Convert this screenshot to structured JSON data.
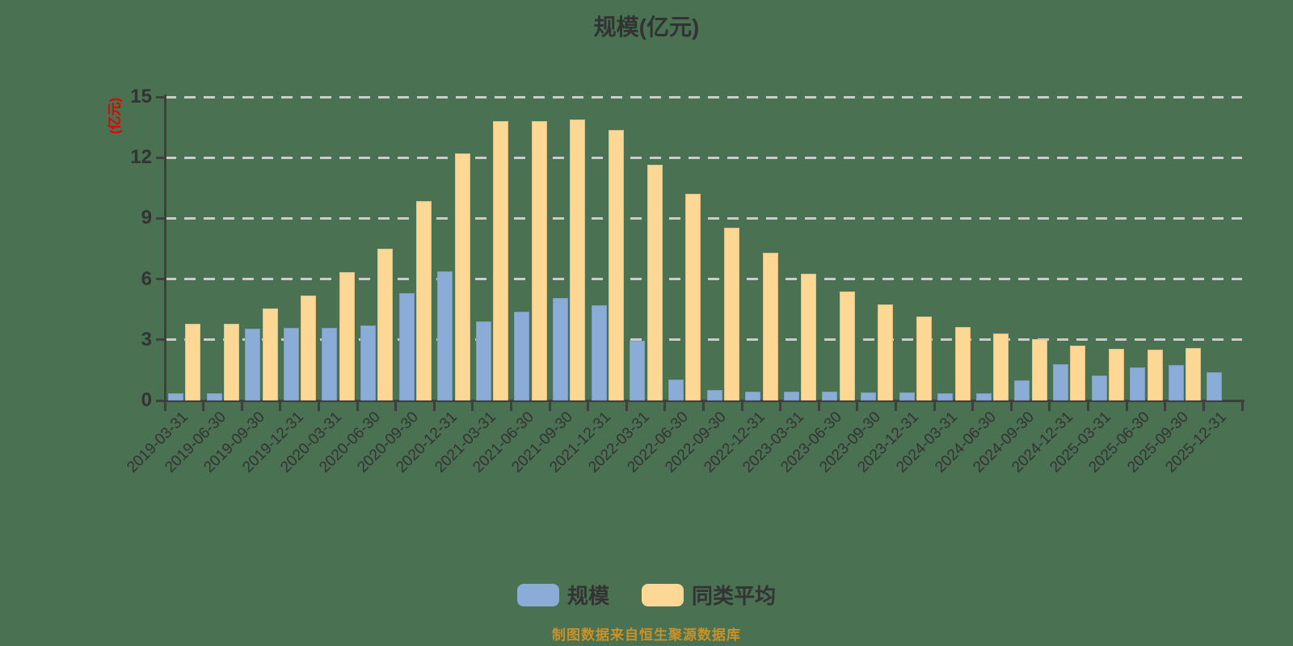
{
  "title": "规模(亿元)",
  "y_axis_name": "(亿元)",
  "footer_note": "制图数据来自恒生聚源数据库",
  "colors": {
    "background": "#4B7153",
    "text": "#333333",
    "axis": "#3F3F3F",
    "grid": "#CCCCCC",
    "y_axis_name_color": "#E60000",
    "footer": "#C8922A",
    "series_scale": "#8CACD8",
    "series_average": "#FCD894"
  },
  "chart_data": {
    "type": "bar",
    "title": "规模(亿元)",
    "ylabel": "(亿元)",
    "ylim": [
      0,
      15
    ],
    "yticks": [
      0,
      3,
      6,
      9,
      12,
      15
    ],
    "grid": true,
    "legend_position": "bottom",
    "categories": [
      "2019-03-31",
      "2019-06-30",
      "2019-09-30",
      "2019-12-31",
      "2020-03-31",
      "2020-06-30",
      "2020-09-30",
      "2020-12-31",
      "2021-03-31",
      "2021-06-30",
      "2021-09-30",
      "2021-12-31",
      "2022-03-31",
      "2022-06-30",
      "2022-09-30",
      "2022-12-31",
      "2023-03-31",
      "2023-06-30",
      "2023-09-30",
      "2023-12-31",
      "2024-03-31",
      "2024-06-30",
      "2024-09-30",
      "2024-12-31",
      "2025-03-31",
      "2025-06-30",
      "2025-09-30",
      "2025-12-31"
    ],
    "series": [
      {
        "name": "规模",
        "color": "#8CACD8",
        "values": [
          0.35,
          0.35,
          3.55,
          3.6,
          3.6,
          3.7,
          5.3,
          6.4,
          3.9,
          4.4,
          5.05,
          4.7,
          2.95,
          1.05,
          0.5,
          0.45,
          0.45,
          0.45,
          0.4,
          0.4,
          0.35,
          0.35,
          1.0,
          1.8,
          1.25,
          1.65,
          1.75,
          1.4
        ]
      },
      {
        "name": "同类平均",
        "color": "#FCD894",
        "values": [
          3.8,
          3.8,
          4.55,
          5.2,
          6.35,
          7.5,
          9.85,
          12.2,
          13.8,
          13.8,
          13.9,
          13.35,
          11.65,
          10.2,
          8.55,
          7.3,
          6.25,
          5.4,
          4.75,
          4.15,
          3.65,
          3.3,
          3.05,
          2.7,
          2.55,
          2.5,
          2.6,
          0
        ]
      }
    ]
  }
}
